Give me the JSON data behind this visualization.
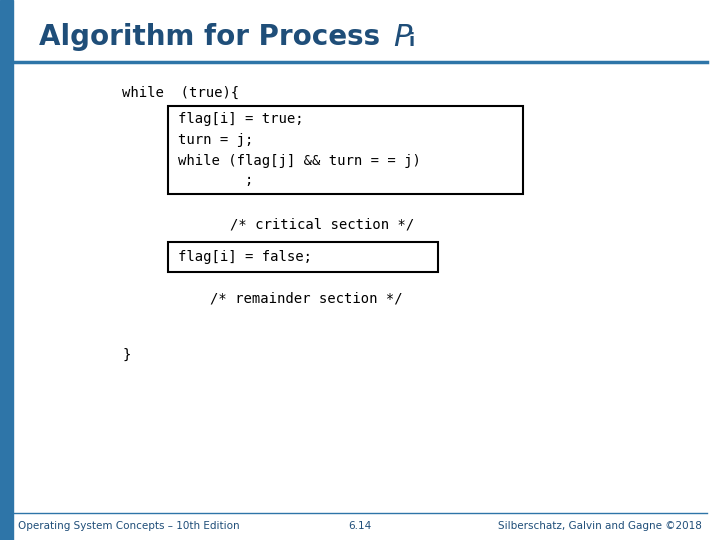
{
  "title_color": "#1F4E79",
  "bg_color": "#FFFFFF",
  "left_bar_color": "#2E75A8",
  "header_line_color": "#2E75A8",
  "code_color": "#000000",
  "box_line_color": "#000000",
  "footer_left": "Operating System Concepts – 10th Edition",
  "footer_center": "6.14",
  "footer_right": "Silberschatz, Galvin and Gagne ©2018",
  "footer_color": "#1F4E79",
  "while_outer": "while  (true){",
  "box1_lines": [
    "flag[i] = true;",
    "turn = j;",
    "while (flag[j] && turn = = j)",
    "        ;"
  ],
  "comment1": "/* critical section */",
  "box2_lines": [
    "flag[i] = false;"
  ],
  "comment2": "/* remainder section */",
  "close_brace": "}",
  "font_size_title": 20,
  "font_size_footer": 7.5
}
